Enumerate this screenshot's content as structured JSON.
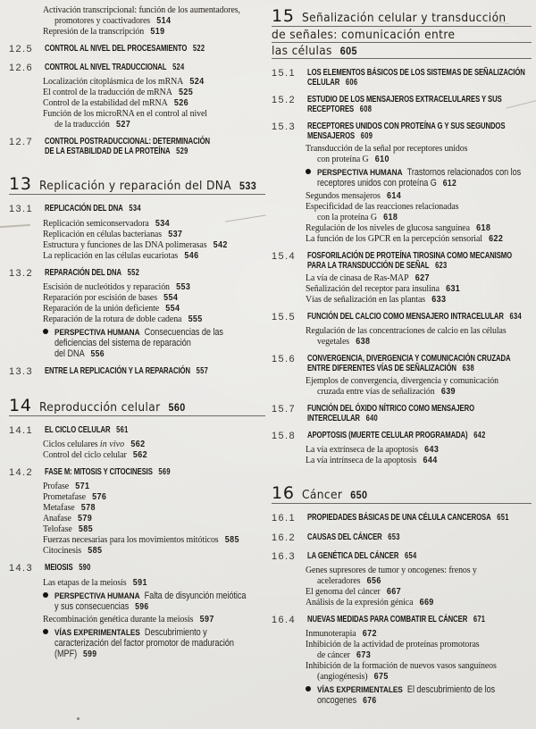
{
  "palette": {
    "paper": "#e8e7e3",
    "ink": "#221e18",
    "rule": "#57524b"
  },
  "columns": [
    {
      "blocks": [
        {
          "kind": "sub",
          "lines": [
            "Activación transcripcional: función de los aumentadores,",
            "promotores y coactivadores"
          ],
          "page": "514"
        },
        {
          "kind": "sub",
          "lines": [
            "Represión de la transcripción"
          ],
          "page": "519"
        },
        {
          "kind": "section",
          "num": "12.5",
          "lines": [
            "CONTROL AL NIVEL DEL PROCESAMIENTO"
          ],
          "page": "522"
        },
        {
          "kind": "section",
          "num": "12.6",
          "lines": [
            "CONTROL AL NIVEL TRADUCCIONAL"
          ],
          "page": "524"
        },
        {
          "kind": "sub",
          "lines": [
            "Localización citoplásmica de los mRNA"
          ],
          "page": "524"
        },
        {
          "kind": "sub",
          "lines": [
            "El control de la traducción de mRNA"
          ],
          "page": "525"
        },
        {
          "kind": "sub",
          "lines": [
            "Control de la estabilidad del mRNA"
          ],
          "page": "526"
        },
        {
          "kind": "sub",
          "lines": [
            "Función de los microRNA en el control al nivel",
            "de la traducción"
          ],
          "page": "527"
        },
        {
          "kind": "section",
          "num": "12.7",
          "lines": [
            "CONTROL POSTRADUCCIONAL: DETERMINACIÓN",
            "DE LA ESTABILIDAD DE LA PROTEÍNA"
          ],
          "page": "529"
        },
        {
          "kind": "chapter",
          "num": "13",
          "lines": [
            "Replicación y reparación del DNA"
          ],
          "page": "533"
        },
        {
          "kind": "section",
          "num": "13.1",
          "lines": [
            "REPLICACIÓN DEL DNA"
          ],
          "page": "534"
        },
        {
          "kind": "sub",
          "lines": [
            "Replicación semiconservadora"
          ],
          "page": "534"
        },
        {
          "kind": "sub",
          "lines": [
            "Replicación en células bacterianas"
          ],
          "page": "537"
        },
        {
          "kind": "sub",
          "lines": [
            "Estructura y funciones de las DNA polimerasas"
          ],
          "page": "542"
        },
        {
          "kind": "sub",
          "lines": [
            "La replicación en las células eucariotas"
          ],
          "page": "546"
        },
        {
          "kind": "section",
          "num": "13.2",
          "lines": [
            "REPARACIÓN DEL DNA"
          ],
          "page": "552"
        },
        {
          "kind": "sub",
          "lines": [
            "Escisión de nucleótidos y reparación"
          ],
          "page": "553"
        },
        {
          "kind": "sub",
          "lines": [
            "Reparación por escisión de bases"
          ],
          "page": "554"
        },
        {
          "kind": "sub",
          "lines": [
            "Reparación de la unión deficiente"
          ],
          "page": "554"
        },
        {
          "kind": "sub",
          "lines": [
            "Reparación de la rotura de doble cadena"
          ],
          "page": "555"
        },
        {
          "kind": "feature",
          "label": "PERSPECTIVA HUMANA",
          "lines": [
            "Consecuencias de las",
            "deficiencias del sistema de reparación",
            "del DNA"
          ],
          "page": "556"
        },
        {
          "kind": "section",
          "num": "13.3",
          "lines": [
            "ENTRE LA REPLICACIÓN Y LA REPARACIÓN"
          ],
          "page": "557"
        },
        {
          "kind": "chapter",
          "num": "14",
          "lines": [
            "Reproducción celular"
          ],
          "page": "560"
        },
        {
          "kind": "section",
          "num": "14.1",
          "lines": [
            "EL CICLO CELULAR"
          ],
          "page": "561"
        },
        {
          "kind": "sub",
          "lines": [
            "Ciclos celulares *in vivo*"
          ],
          "page": "562"
        },
        {
          "kind": "sub",
          "lines": [
            "Control del ciclo celular"
          ],
          "page": "562"
        },
        {
          "kind": "section",
          "num": "14.2",
          "lines": [
            "FASE M: MITOSIS Y CITOCINESIS"
          ],
          "page": "569"
        },
        {
          "kind": "sub",
          "lines": [
            "Profase"
          ],
          "page": "571"
        },
        {
          "kind": "sub",
          "lines": [
            "Prometafase"
          ],
          "page": "576"
        },
        {
          "kind": "sub",
          "lines": [
            "Metafase"
          ],
          "page": "578"
        },
        {
          "kind": "sub",
          "lines": [
            "Anafase"
          ],
          "page": "579"
        },
        {
          "kind": "sub",
          "lines": [
            "Telofase"
          ],
          "page": "585"
        },
        {
          "kind": "sub",
          "lines": [
            "Fuerzas necesarias para los movimientos mitóticos"
          ],
          "page": "585"
        },
        {
          "kind": "sub",
          "lines": [
            "Citocinesis"
          ],
          "page": "585"
        },
        {
          "kind": "section",
          "num": "14.3",
          "lines": [
            "MEIOSIS"
          ],
          "page": "590"
        },
        {
          "kind": "sub",
          "lines": [
            "Las etapas de la meiosis"
          ],
          "page": "591"
        },
        {
          "kind": "feature",
          "label": "PERSPECTIVA HUMANA",
          "lines": [
            "Falta de disyunción meiótica",
            "y sus consecuencias"
          ],
          "page": "596"
        },
        {
          "kind": "sub",
          "lines": [
            "Recombinación genética durante la meiosis"
          ],
          "page": "597"
        },
        {
          "kind": "feature",
          "label": "VÍAS EXPERIMENTALES",
          "lines": [
            "Descubrimiento y",
            "caracterización del factor promotor de maduración",
            "(MPF)"
          ],
          "page": "599"
        }
      ]
    },
    {
      "blocks": [
        {
          "kind": "chapter",
          "num": "15",
          "lines": [
            "Señalización celular y transducción",
            "de señales: comunicación entre",
            "las células"
          ],
          "page": "605"
        },
        {
          "kind": "section",
          "num": "15.1",
          "lines": [
            "LOS ELEMENTOS BÁSICOS DE LOS SISTEMAS DE SEÑALIZACIÓN",
            "CELULAR"
          ],
          "page": "606"
        },
        {
          "kind": "section",
          "num": "15.2",
          "lines": [
            "ESTUDIO DE LOS MENSAJEROS EXTRACELULARES Y SUS",
            "RECEPTORES"
          ],
          "page": "608"
        },
        {
          "kind": "section",
          "num": "15.3",
          "lines": [
            "RECEPTORES UNIDOS CON PROTEÍNA G Y SUS SEGUNDOS",
            "MENSAJEROS"
          ],
          "page": "609"
        },
        {
          "kind": "sub",
          "lines": [
            "Transducción de la señal por receptores unidos",
            "con proteína G"
          ],
          "page": "610"
        },
        {
          "kind": "feature",
          "label": "PERSPECTIVA HUMANA",
          "lines": [
            "Trastornos relacionados con los",
            "receptores unidos con proteína G"
          ],
          "page": "612"
        },
        {
          "kind": "sub",
          "lines": [
            "Segundos mensajeros"
          ],
          "page": "614"
        },
        {
          "kind": "sub",
          "lines": [
            "Especificidad de las reacciones relacionadas",
            "con la proteína G"
          ],
          "page": "618"
        },
        {
          "kind": "sub",
          "lines": [
            "Regulación de los niveles de glucosa sanguínea"
          ],
          "page": "618"
        },
        {
          "kind": "sub",
          "lines": [
            "La función de los GPCR en la percepción sensorial"
          ],
          "page": "622"
        },
        {
          "kind": "section",
          "num": "15.4",
          "lines": [
            "FOSFORILACIÓN DE PROTEÍNA TIROSINA COMO MECANISMO",
            "PARA LA TRANSDUCCIÓN DE SEÑAL"
          ],
          "page": "623"
        },
        {
          "kind": "sub",
          "lines": [
            "La vía de cinasa de Ras-MAP"
          ],
          "page": "627"
        },
        {
          "kind": "sub",
          "lines": [
            "Señalización del receptor para insulina"
          ],
          "page": "631"
        },
        {
          "kind": "sub",
          "lines": [
            "Vías de señalización en las plantas"
          ],
          "page": "633"
        },
        {
          "kind": "section",
          "num": "15.5",
          "lines": [
            "FUNCIÓN DEL CALCIO COMO MENSAJERO INTRACELULAR"
          ],
          "page": "634"
        },
        {
          "kind": "sub",
          "lines": [
            "Regulación de las concentraciones de calcio en las células",
            "vegetales"
          ],
          "page": "638"
        },
        {
          "kind": "section",
          "num": "15.6",
          "lines": [
            "CONVERGENCIA, DIVERGENCIA Y COMUNICACIÓN CRUZADA",
            "ENTRE DIFERENTES VÍAS DE SEÑALIZACIÓN"
          ],
          "page": "638"
        },
        {
          "kind": "sub",
          "lines": [
            "Ejemplos de convergencia, divergencia y comunicación",
            "cruzada entre vías de señalización"
          ],
          "page": "639"
        },
        {
          "kind": "section",
          "num": "15.7",
          "lines": [
            "FUNCIÓN DEL ÓXIDO NÍTRICO COMO MENSAJERO",
            "INTERCELULAR"
          ],
          "page": "640"
        },
        {
          "kind": "section",
          "num": "15.8",
          "lines": [
            "APOPTOSIS (MUERTE CELULAR PROGRAMADA)"
          ],
          "page": "642"
        },
        {
          "kind": "sub",
          "lines": [
            "La vía extrínseca de la apoptosis"
          ],
          "page": "643"
        },
        {
          "kind": "sub",
          "lines": [
            "La vía intrínseca de la apoptosis"
          ],
          "page": "644"
        },
        {
          "kind": "chapter",
          "num": "16",
          "lines": [
            "Cáncer"
          ],
          "page": "650"
        },
        {
          "kind": "section",
          "num": "16.1",
          "lines": [
            "PROPIEDADES BÁSICAS DE UNA CÉLULA CANCEROSA"
          ],
          "page": "651"
        },
        {
          "kind": "section",
          "num": "16.2",
          "lines": [
            "CAUSAS DEL CÁNCER"
          ],
          "page": "653"
        },
        {
          "kind": "section",
          "num": "16.3",
          "lines": [
            "LA GENÉTICA DEL CÁNCER"
          ],
          "page": "654"
        },
        {
          "kind": "sub",
          "lines": [
            "Genes supresores de tumor y oncogenes: frenos y",
            "aceleradores"
          ],
          "page": "656"
        },
        {
          "kind": "sub",
          "lines": [
            "El genoma del cáncer"
          ],
          "page": "667"
        },
        {
          "kind": "sub",
          "lines": [
            "Análisis de la expresión génica"
          ],
          "page": "669"
        },
        {
          "kind": "section",
          "num": "16.4",
          "lines": [
            "NUEVAS MEDIDAS PARA COMBATIR EL CÁNCER"
          ],
          "page": "671"
        },
        {
          "kind": "sub",
          "lines": [
            "Inmunoterapia"
          ],
          "page": "672"
        },
        {
          "kind": "sub",
          "lines": [
            "Inhibición de la actividad de proteínas promotoras",
            "de cáncer"
          ],
          "page": "673"
        },
        {
          "kind": "sub",
          "lines": [
            "Inhibición de la formación de nuevos vasos sanguíneos",
            "(angiogénesis)"
          ],
          "page": "675"
        },
        {
          "kind": "feature",
          "label": "VÍAS EXPERIMENTALES",
          "lines": [
            "El descubrimiento de los",
            "oncogenes"
          ],
          "page": "676"
        }
      ]
    }
  ]
}
